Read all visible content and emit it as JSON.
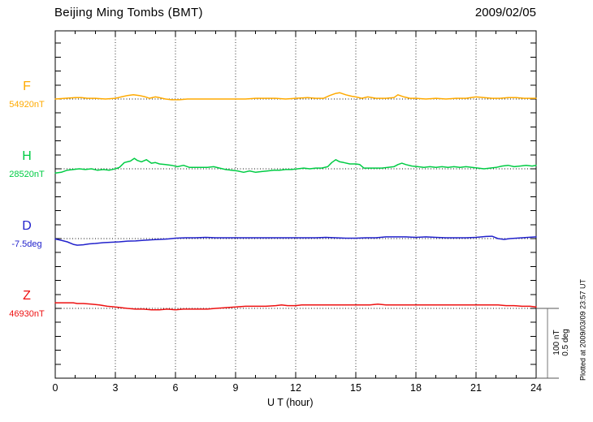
{
  "chart_data": {
    "type": "line",
    "title": "Beijing Ming Tombs (BMT)",
    "date": "2009/02/05",
    "xlabel": "U T (hour)",
    "x_range": [
      0,
      24
    ],
    "x_major_ticks": [
      0,
      3,
      6,
      9,
      12,
      15,
      18,
      21,
      24
    ],
    "minor_tick_interval_hours": 1,
    "grid": "dotted vertical lines every 3 hours; dotted horizontal baseline for each trace",
    "scale_bar": {
      "labels": [
        "100 nT",
        "0.5 deg"
      ]
    },
    "annotation": "Plotted at 2009/03/09 23:57 UT",
    "series": [
      {
        "name": "F",
        "unit": "nT",
        "baseline_value": 54920,
        "baseline_label": "54920nT",
        "color": "#ffaa00",
        "points": [
          [
            0,
            0
          ],
          [
            0.5,
            1
          ],
          [
            1,
            2
          ],
          [
            1.3,
            2
          ],
          [
            1.6,
            1
          ],
          [
            2,
            1
          ],
          [
            2.5,
            0
          ],
          [
            3,
            1
          ],
          [
            3.3,
            3
          ],
          [
            3.6,
            5
          ],
          [
            3.9,
            6
          ],
          [
            4.2,
            5
          ],
          [
            4.5,
            3
          ],
          [
            4.7,
            1
          ],
          [
            5,
            3
          ],
          [
            5.2,
            2
          ],
          [
            5.5,
            0
          ],
          [
            5.8,
            -1
          ],
          [
            6.2,
            -1
          ],
          [
            6.6,
            0
          ],
          [
            7,
            0
          ],
          [
            7.5,
            0
          ],
          [
            8,
            0
          ],
          [
            8.5,
            0
          ],
          [
            9,
            0
          ],
          [
            9.5,
            0
          ],
          [
            10,
            1
          ],
          [
            10.5,
            1
          ],
          [
            11,
            1
          ],
          [
            11.5,
            0
          ],
          [
            12,
            1
          ],
          [
            12.6,
            2
          ],
          [
            13,
            1
          ],
          [
            13.4,
            1
          ],
          [
            13.7,
            5
          ],
          [
            14,
            8
          ],
          [
            14.2,
            9
          ],
          [
            14.5,
            6
          ],
          [
            14.8,
            4
          ],
          [
            15,
            3
          ],
          [
            15.3,
            1
          ],
          [
            15.6,
            3
          ],
          [
            16,
            1
          ],
          [
            16.5,
            1
          ],
          [
            16.9,
            2
          ],
          [
            17.1,
            6
          ],
          [
            17.4,
            3
          ],
          [
            17.7,
            1
          ],
          [
            18,
            1
          ],
          [
            18.5,
            0
          ],
          [
            19,
            1
          ],
          [
            19.5,
            0
          ],
          [
            20,
            1
          ],
          [
            20.5,
            1
          ],
          [
            21,
            3
          ],
          [
            21.4,
            2
          ],
          [
            21.8,
            1
          ],
          [
            22.2,
            1
          ],
          [
            22.6,
            2
          ],
          [
            23,
            2
          ],
          [
            23.4,
            1
          ],
          [
            23.7,
            1
          ],
          [
            24,
            1
          ]
        ]
      },
      {
        "name": "H",
        "unit": "nT",
        "baseline_value": 28520,
        "baseline_label": "28520nT",
        "color": "#00cc44",
        "points": [
          [
            0,
            -6
          ],
          [
            0.3,
            -5
          ],
          [
            0.6,
            -2
          ],
          [
            0.9,
            -1
          ],
          [
            1.2,
            0
          ],
          [
            1.5,
            -1
          ],
          [
            1.8,
            0
          ],
          [
            2.1,
            -2
          ],
          [
            2.4,
            -1
          ],
          [
            2.7,
            -2
          ],
          [
            3,
            0
          ],
          [
            3.2,
            2
          ],
          [
            3.45,
            9
          ],
          [
            3.6,
            10
          ],
          [
            3.75,
            11
          ],
          [
            3.95,
            15
          ],
          [
            4.1,
            12
          ],
          [
            4.3,
            10
          ],
          [
            4.55,
            13
          ],
          [
            4.8,
            8
          ],
          [
            5,
            9
          ],
          [
            5.2,
            7
          ],
          [
            5.5,
            6
          ],
          [
            5.8,
            5
          ],
          [
            6.1,
            3
          ],
          [
            6.4,
            5
          ],
          [
            6.7,
            2
          ],
          [
            7,
            2
          ],
          [
            7.3,
            2
          ],
          [
            7.6,
            2
          ],
          [
            7.9,
            3
          ],
          [
            8.2,
            1
          ],
          [
            8.5,
            -1
          ],
          [
            8.8,
            -2
          ],
          [
            9.1,
            -3
          ],
          [
            9.4,
            -5
          ],
          [
            9.7,
            -3
          ],
          [
            10,
            -5
          ],
          [
            10.3,
            -4
          ],
          [
            10.6,
            -3
          ],
          [
            10.9,
            -2
          ],
          [
            11.2,
            -2
          ],
          [
            11.5,
            -1
          ],
          [
            11.8,
            -1
          ],
          [
            12.1,
            0
          ],
          [
            12.4,
            1
          ],
          [
            12.7,
            0
          ],
          [
            13,
            1
          ],
          [
            13.3,
            1
          ],
          [
            13.6,
            3
          ],
          [
            13.8,
            9
          ],
          [
            14,
            13
          ],
          [
            14.2,
            10
          ],
          [
            14.4,
            9
          ],
          [
            14.7,
            7
          ],
          [
            15,
            7
          ],
          [
            15.2,
            6
          ],
          [
            15.4,
            1
          ],
          [
            15.7,
            1
          ],
          [
            16,
            1
          ],
          [
            16.3,
            1
          ],
          [
            16.6,
            2
          ],
          [
            16.9,
            3
          ],
          [
            17.1,
            6
          ],
          [
            17.3,
            8
          ],
          [
            17.5,
            6
          ],
          [
            17.8,
            4
          ],
          [
            18.1,
            3
          ],
          [
            18.4,
            2
          ],
          [
            18.7,
            3
          ],
          [
            19,
            2
          ],
          [
            19.3,
            3
          ],
          [
            19.6,
            2
          ],
          [
            19.9,
            3
          ],
          [
            20.2,
            2
          ],
          [
            20.5,
            3
          ],
          [
            20.8,
            2
          ],
          [
            21.1,
            1
          ],
          [
            21.4,
            0
          ],
          [
            21.7,
            1
          ],
          [
            22,
            2
          ],
          [
            22.3,
            4
          ],
          [
            22.6,
            5
          ],
          [
            22.9,
            3
          ],
          [
            23.2,
            4
          ],
          [
            23.5,
            5
          ],
          [
            23.8,
            4
          ],
          [
            24,
            5
          ]
        ]
      },
      {
        "name": "D",
        "unit": "deg",
        "baseline_value": -7.5,
        "baseline_label": "-7.5deg",
        "color": "#2222cc",
        "points": [
          [
            0,
            -0.003
          ],
          [
            0.3,
            -0.012
          ],
          [
            0.6,
            -0.023
          ],
          [
            0.9,
            -0.041
          ],
          [
            1.1,
            -0.047
          ],
          [
            1.4,
            -0.044
          ],
          [
            1.7,
            -0.038
          ],
          [
            2,
            -0.035
          ],
          [
            2.4,
            -0.029
          ],
          [
            2.8,
            -0.026
          ],
          [
            3.2,
            -0.023
          ],
          [
            3.6,
            -0.018
          ],
          [
            4,
            -0.017
          ],
          [
            4.4,
            -0.012
          ],
          [
            4.8,
            -0.009
          ],
          [
            5.2,
            -0.006
          ],
          [
            5.6,
            -0.003
          ],
          [
            6,
            0.003
          ],
          [
            6.5,
            0.006
          ],
          [
            7,
            0.006
          ],
          [
            7.5,
            0.009
          ],
          [
            8,
            0.006
          ],
          [
            8.5,
            0.006
          ],
          [
            9,
            0.006
          ],
          [
            9.5,
            0.006
          ],
          [
            10,
            0.006
          ],
          [
            10.5,
            0.006
          ],
          [
            11,
            0.006
          ],
          [
            11.5,
            0.006
          ],
          [
            12,
            0.006
          ],
          [
            12.5,
            0.006
          ],
          [
            13,
            0.006
          ],
          [
            13.5,
            0.009
          ],
          [
            14,
            0.006
          ],
          [
            14.5,
            0.003
          ],
          [
            15,
            0.003
          ],
          [
            15.5,
            0.006
          ],
          [
            16,
            0.006
          ],
          [
            16.5,
            0.012
          ],
          [
            17,
            0.012
          ],
          [
            17.5,
            0.012
          ],
          [
            18,
            0.009
          ],
          [
            18.5,
            0.012
          ],
          [
            19,
            0.009
          ],
          [
            19.5,
            0.006
          ],
          [
            20,
            0.006
          ],
          [
            20.5,
            0.006
          ],
          [
            21,
            0.009
          ],
          [
            21.5,
            0.015
          ],
          [
            21.8,
            0.017
          ],
          [
            22.1,
            0
          ],
          [
            22.4,
            -0.006
          ],
          [
            22.7,
            0
          ],
          [
            23,
            0.003
          ],
          [
            23.3,
            0.006
          ],
          [
            23.6,
            0.009
          ],
          [
            24,
            0.012
          ]
        ]
      },
      {
        "name": "Z",
        "unit": "nT",
        "baseline_value": 46930,
        "baseline_label": "46930nT",
        "color": "#ee1111",
        "points": [
          [
            0,
            8
          ],
          [
            0.3,
            8
          ],
          [
            0.6,
            8
          ],
          [
            0.9,
            8
          ],
          [
            1.1,
            7
          ],
          [
            1.4,
            7
          ],
          [
            1.8,
            6
          ],
          [
            2.2,
            5
          ],
          [
            2.6,
            3
          ],
          [
            3,
            2
          ],
          [
            3.3,
            1
          ],
          [
            3.6,
            0
          ],
          [
            4,
            -1
          ],
          [
            4.4,
            -1
          ],
          [
            4.8,
            -2
          ],
          [
            5.2,
            -2
          ],
          [
            5.6,
            -1
          ],
          [
            6,
            -2
          ],
          [
            6.4,
            -1
          ],
          [
            6.8,
            -1
          ],
          [
            7.2,
            -1
          ],
          [
            7.6,
            -1
          ],
          [
            8,
            0
          ],
          [
            8.5,
            1
          ],
          [
            9,
            2
          ],
          [
            9.5,
            3
          ],
          [
            10,
            3
          ],
          [
            10.5,
            3
          ],
          [
            11,
            4
          ],
          [
            11.3,
            5
          ],
          [
            11.6,
            4
          ],
          [
            12,
            4
          ],
          [
            12.3,
            5
          ],
          [
            12.6,
            5
          ],
          [
            12.9,
            5
          ],
          [
            13.3,
            5
          ],
          [
            13.7,
            5
          ],
          [
            14.1,
            5
          ],
          [
            14.5,
            5
          ],
          [
            14.9,
            5
          ],
          [
            15.3,
            5
          ],
          [
            15.7,
            5
          ],
          [
            16.1,
            6
          ],
          [
            16.5,
            5
          ],
          [
            16.9,
            5
          ],
          [
            17.3,
            5
          ],
          [
            17.7,
            5
          ],
          [
            18.1,
            5
          ],
          [
            18.5,
            5
          ],
          [
            18.9,
            5
          ],
          [
            19.3,
            5
          ],
          [
            19.7,
            5
          ],
          [
            20.1,
            5
          ],
          [
            20.5,
            5
          ],
          [
            20.9,
            5
          ],
          [
            21.3,
            5
          ],
          [
            21.7,
            5
          ],
          [
            22.1,
            5
          ],
          [
            22.5,
            4
          ],
          [
            22.9,
            4
          ],
          [
            23.3,
            3
          ],
          [
            23.7,
            3
          ],
          [
            24,
            2
          ]
        ]
      }
    ]
  }
}
